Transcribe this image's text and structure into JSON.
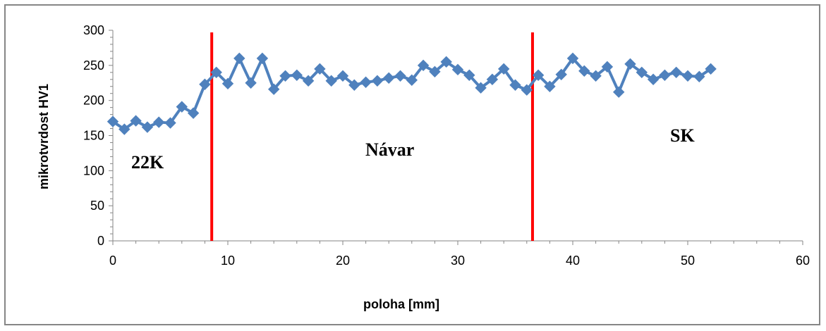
{
  "chart_data": {
    "type": "line",
    "xlabel": "poloha [mm]",
    "ylabel": "mikrotvrdost HV1",
    "xlim": [
      0,
      60
    ],
    "ylim": [
      0,
      300
    ],
    "x_ticks": [
      0,
      10,
      20,
      30,
      40,
      50,
      60
    ],
    "y_ticks": [
      0,
      50,
      100,
      150,
      200,
      250,
      300
    ],
    "grid": false,
    "legend": "none",
    "series": [
      {
        "color": "#4F81BD",
        "marker": "diamond",
        "x": [
          0,
          1,
          2,
          3,
          4,
          5,
          6,
          7,
          8,
          9,
          10,
          11,
          12,
          13,
          14,
          15,
          16,
          17,
          18,
          19,
          20,
          21,
          22,
          23,
          24,
          25,
          26,
          27,
          28,
          29,
          30,
          31,
          32,
          33,
          34,
          35,
          36,
          37,
          38,
          39,
          40,
          41,
          42,
          43,
          44,
          45,
          46,
          47,
          48,
          49,
          50,
          51,
          52
        ],
        "y": [
          170,
          159,
          171,
          162,
          169,
          168,
          191,
          182,
          223,
          240,
          224,
          260,
          225,
          260,
          216,
          235,
          236,
          228,
          245,
          228,
          235,
          222,
          226,
          228,
          232,
          235,
          229,
          250,
          241,
          255,
          244,
          236,
          218,
          230,
          245,
          222,
          215,
          236,
          220,
          237,
          260,
          242,
          235,
          248,
          212,
          252,
          240,
          230,
          236,
          240,
          235,
          234,
          245
        ]
      }
    ],
    "boundaries": [
      {
        "x": 8.6,
        "color": "#FF0000"
      },
      {
        "x": 36.5,
        "color": "#FF0000"
      }
    ],
    "annotations": [
      "22K",
      "Návar",
      "SK"
    ]
  }
}
